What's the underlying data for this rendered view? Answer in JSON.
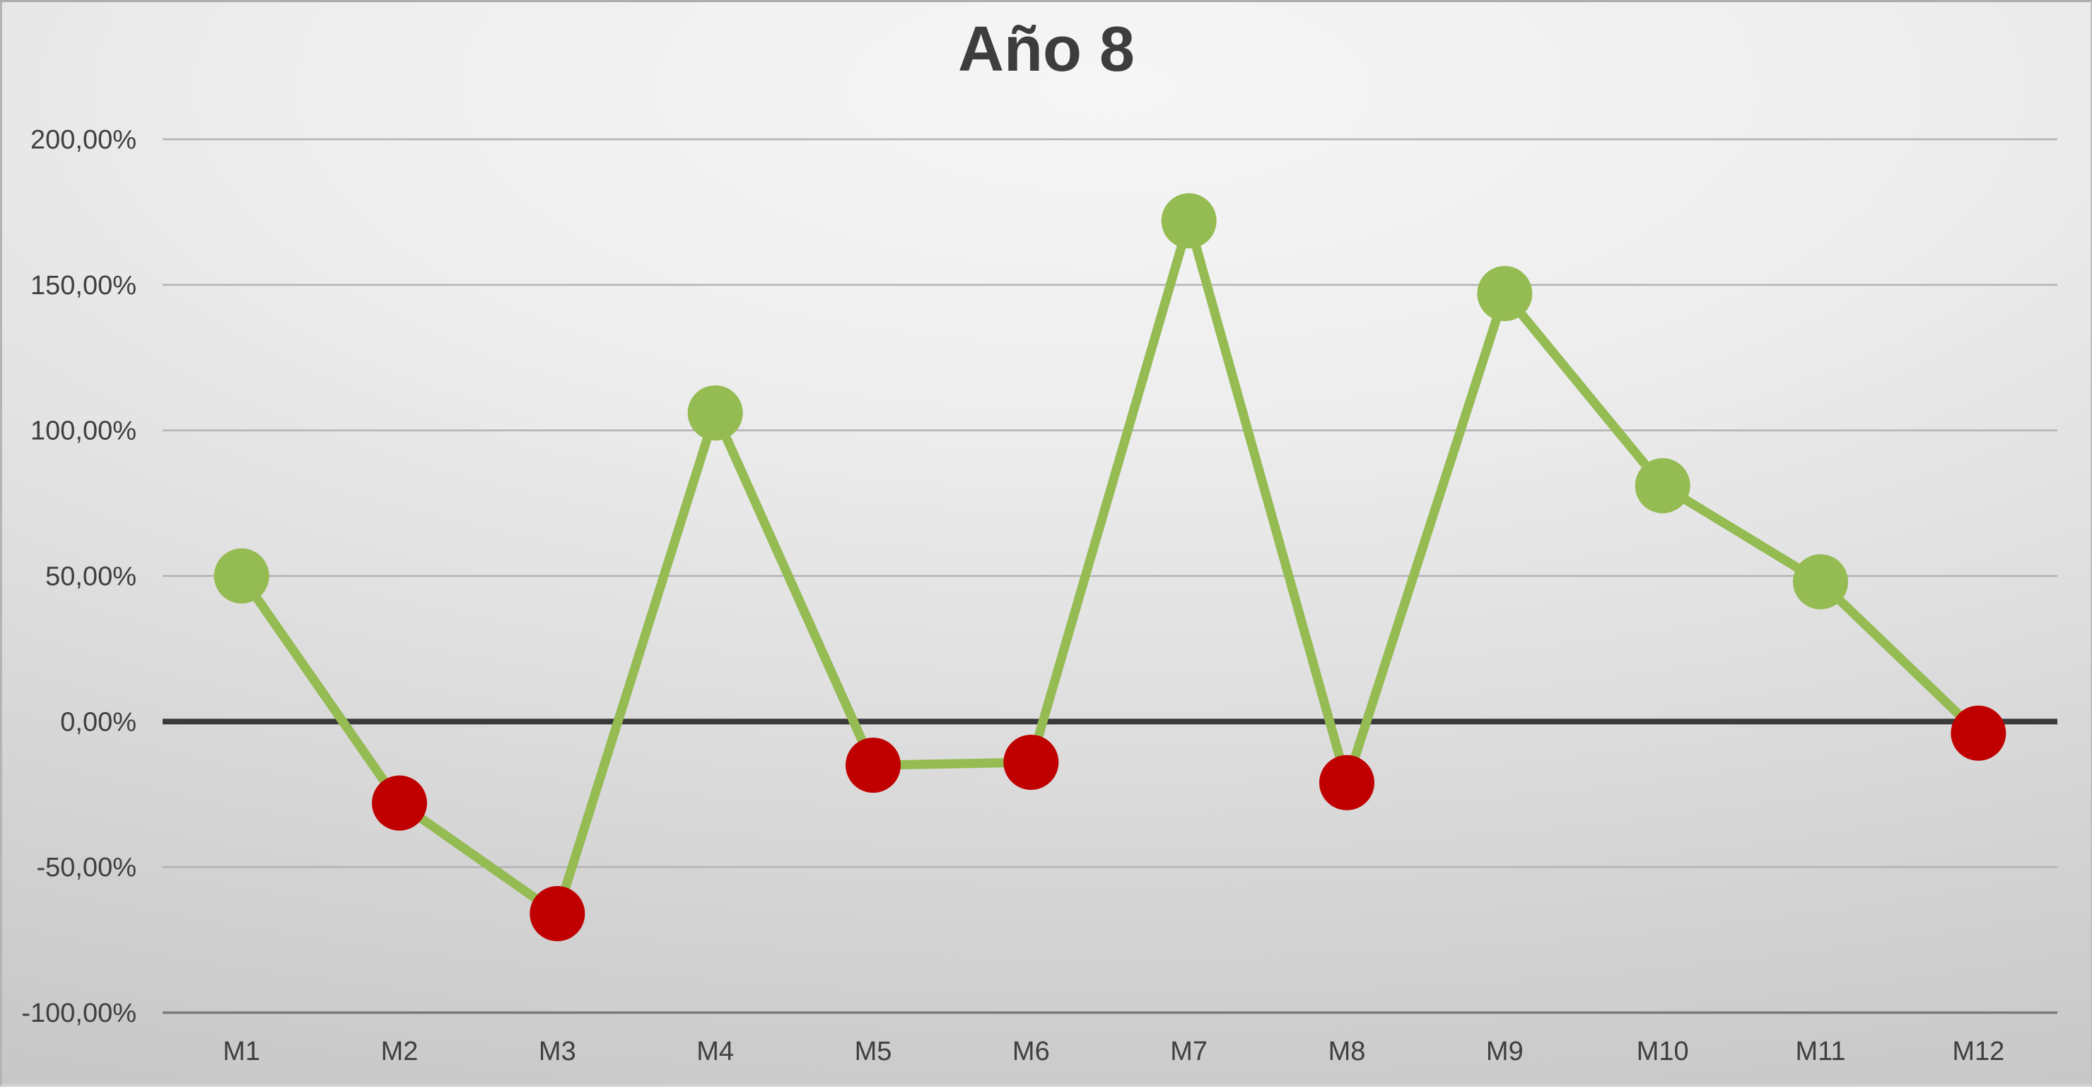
{
  "title": "Año 8",
  "chart_data": {
    "type": "line",
    "title": "Año 8",
    "categories": [
      "M1",
      "M2",
      "M3",
      "M4",
      "M5",
      "M6",
      "M7",
      "M8",
      "M9",
      "M10",
      "M11",
      "M12"
    ],
    "series": [
      {
        "name": "Año 8",
        "values": [
          50,
          -28,
          -66,
          106,
          -15,
          -14,
          172,
          -21,
          147,
          81,
          48,
          -4
        ]
      }
    ],
    "value_unit": "percent",
    "ylim": [
      -100,
      200
    ],
    "y_tick_values": [
      200,
      150,
      100,
      50,
      0,
      -50,
      -100
    ],
    "y_ticks": [
      "200,00%",
      "150,00%",
      "100,00%",
      "50,00%",
      "0,00%",
      "-50,00%",
      "-100,00%"
    ],
    "grid": true,
    "legend": "none",
    "annotations": [],
    "colors": {
      "line": "#95BB53",
      "marker_positive": "#95BB53",
      "marker_negative": "#C00000",
      "zero_line": "#3A3A3A",
      "gridline": "#B3B3B3",
      "bottom_axis": "#7A7A7A",
      "tick_text": "#3F3F3F",
      "title_text": "#3D3D3D"
    }
  }
}
